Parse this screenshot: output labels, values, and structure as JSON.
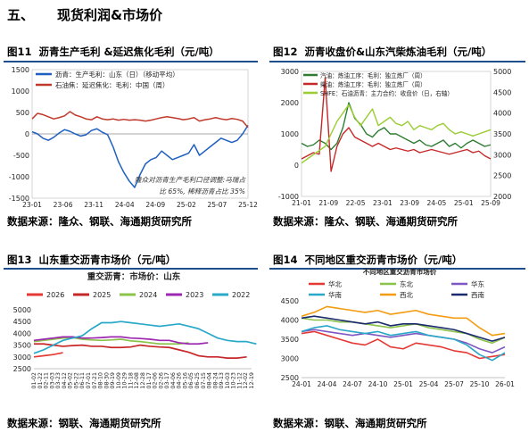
{
  "section": {
    "number": "五、",
    "title": "现货利润&市场价"
  },
  "panels": [
    {
      "fig": "图11",
      "title": "沥青生产毛利 &延迟焦化毛利（元/吨）",
      "source": "数据来源：隆众、钢联、海通期货研究所"
    },
    {
      "fig": "图12",
      "title": "沥青收盘价&山东汽柴炼油毛利（元/吨）",
      "source": "数据来源：隆众、钢联、海通期货研究所"
    },
    {
      "fig": "图13",
      "title": "山东重交沥青市场价（元/吨）",
      "source": "数据来源：钢联、海通期货研究所"
    },
    {
      "fig": "图14",
      "title": "不同地区重交沥青市场价（元/吨）",
      "source": "数据来源：钢联、海通期货研究所"
    }
  ],
  "chart_data": [
    {
      "type": "line",
      "title": "",
      "colors": [
        "#1f5fbf",
        "#c0392b"
      ],
      "x_tick_labels": [
        "23-01",
        "23-06",
        "23-11",
        "24-04",
        "24-09",
        "25-02",
        "25-07",
        "25-12"
      ],
      "ylim": [
        -1500,
        1500
      ],
      "y_ticks": [
        -1500,
        -1000,
        -500,
        0,
        500,
        1000,
        1500
      ],
      "annotation": "隆众对沥青生产毛利口径调整:马瑞占比 65%, 稀释沥青占比 35%",
      "annotation_lines": [
        "隆众对沥青生产毛利口径调整:马瑞占",
        "比 65%, 稀释沥青占比 35%"
      ],
      "legend_position": "top-left",
      "series": [
        {
          "name": "沥青：生产毛利：山东（日）（移动平均）",
          "color": "#1f5fbf",
          "values": [
            50,
            0,
            -100,
            -150,
            -80,
            20,
            100,
            60,
            0,
            -50,
            -20,
            80,
            120,
            40,
            -20,
            -300,
            -650,
            -900,
            -1100,
            -1250,
            -950,
            -700,
            -600,
            -550,
            -400,
            -500,
            -600,
            -550,
            -500,
            -450,
            -250,
            -500,
            -400,
            -300,
            -200,
            -100,
            -150,
            -200,
            -150,
            0,
            200
          ]
        },
        {
          "name": "石油焦：延迟焦化：毛利：中国（周）",
          "color": "#c0392b",
          "values": [
            350,
            480,
            450,
            400,
            350,
            380,
            420,
            520,
            440,
            400,
            350,
            330,
            400,
            350,
            330,
            350,
            320,
            340,
            320,
            330,
            320,
            300,
            320,
            350,
            380,
            400,
            380,
            360,
            330,
            350,
            380,
            300,
            330,
            350,
            380,
            350,
            330,
            360,
            340,
            300,
            150
          ]
        }
      ]
    },
    {
      "type": "line",
      "title": "",
      "x_tick_labels": [
        "21-01",
        "21-09",
        "22-05",
        "23-01",
        "23-09",
        "24-05",
        "25-01",
        "25-09"
      ],
      "ylim_left": [
        -1000,
        3000
      ],
      "y_ticks_left": [
        -1000,
        0,
        1000,
        2000,
        3000
      ],
      "ylim_right": [
        2000,
        5000
      ],
      "y_ticks_right": [
        2000,
        2500,
        3000,
        3500,
        4000,
        4500,
        5000
      ],
      "legend_position": "top-left",
      "series": [
        {
          "name": "汽油：炼油工序：毛利：独立炼厂（周）",
          "color": "#2e7d32",
          "axis": "left",
          "values": [
            700,
            600,
            650,
            800,
            700,
            500,
            700,
            1200,
            2000,
            1500,
            1300,
            1000,
            900,
            1100,
            1200,
            1000,
            1000,
            900,
            800,
            700,
            800,
            650,
            600,
            700,
            800,
            600,
            700,
            550,
            700,
            800,
            700,
            600,
            650
          ]
        },
        {
          "name": "柴油：炼油工序：毛利：独立炼厂（周）",
          "color": "#c62828",
          "axis": "left",
          "values": [
            200,
            300,
            400,
            350,
            2800,
            -200,
            600,
            1000,
            1200,
            900,
            800,
            700,
            600,
            700,
            600,
            500,
            550,
            500,
            450,
            500,
            400,
            450,
            500,
            450,
            400,
            350,
            400,
            450,
            500,
            400,
            450,
            300,
            200
          ]
        },
        {
          "name": "SHFE：石油沥青：主力合约：收盘价（日，右轴）",
          "color": "#9acd32",
          "axis": "right",
          "values": [
            2800,
            2900,
            3000,
            3100,
            3200,
            3500,
            3800,
            4000,
            4200,
            3900,
            3700,
            3900,
            4100,
            3700,
            3800,
            3900,
            3750,
            3700,
            3800,
            3600,
            3700,
            3650,
            3600,
            3700,
            3750,
            3600,
            3500,
            3550,
            3500,
            3450,
            3500,
            3550,
            3600
          ]
        }
      ]
    },
    {
      "type": "line",
      "title": "重交沥青：市场价：山东",
      "x_tick_labels": [
        "01-02",
        "01-22",
        "02-11",
        "03-03",
        "03-23",
        "04-12",
        "05-02",
        "05-22",
        "06-11",
        "07-01",
        "07-21",
        "08-10",
        "08-30",
        "09-19",
        "10-09",
        "10-29",
        "11-18",
        "12-08",
        "12-28",
        "01-17",
        "02-06",
        "02-26",
        "03-17",
        "04-06",
        "04-26",
        "05-16",
        "06-05",
        "06-25",
        "07-15",
        "08-04",
        "08-24",
        "09-13",
        "10-03",
        "10-23",
        "11-12",
        "12-02",
        "12-19"
      ],
      "ylim": [
        2500,
        5000
      ],
      "y_ticks": [
        2500,
        3000,
        3500,
        4000,
        4500,
        5000
      ],
      "legend_position": "top",
      "series": [
        {
          "name": "2026",
          "color": "#e53935",
          "values": [
            3000,
            3050,
            3100,
            3180
          ]
        },
        {
          "name": "2025",
          "color": "#c62828",
          "values": [
            3550,
            3550,
            3500,
            3450,
            3480,
            3500,
            3450,
            3450,
            3400,
            3400,
            3420,
            3500,
            3450,
            3420,
            3400,
            3300,
            3200,
            3050,
            3000,
            3000,
            2950,
            2950,
            3000
          ]
        },
        {
          "name": "2024",
          "color": "#8bc34a",
          "values": [
            3650,
            3700,
            3750,
            3800,
            3820,
            3750,
            3720,
            3700,
            3720,
            3750,
            3680,
            3650,
            3600,
            3550,
            3550,
            3550,
            3600
          ]
        },
        {
          "name": "2023",
          "color": "#9c27b0",
          "values": [
            3700,
            3750,
            3800,
            3850,
            3850,
            3800,
            3800,
            3820,
            3850,
            3850,
            3800,
            3780,
            3750,
            3700,
            3700,
            3600,
            3550,
            3550,
            3600
          ]
        },
        {
          "name": "2022",
          "color": "#29a8c8",
          "values": [
            3150,
            3300,
            3500,
            3700,
            3800,
            3900,
            4200,
            4450,
            4450,
            4500,
            4450,
            4400,
            4350,
            4300,
            4350,
            4400,
            4300,
            4200,
            4000,
            3800,
            3700,
            3650,
            3650,
            3550
          ]
        }
      ]
    },
    {
      "type": "line",
      "title": "不同地区重交沥青市场价",
      "x_tick_labels": [
        "24-01",
        "24-04",
        "24-07",
        "24-10",
        "25-01",
        "25-04",
        "25-07",
        "25-10",
        "26-01"
      ],
      "ylim": [
        2500,
        4500
      ],
      "y_ticks": [
        2500,
        3000,
        3500,
        4000,
        4500
      ],
      "legend_position": "top",
      "series": [
        {
          "name": "华北",
          "color": "#e53935",
          "values": [
            3650,
            3700,
            3600,
            3500,
            3400,
            3350,
            3500,
            3300,
            3250,
            3400,
            3350,
            3300,
            3200,
            3150,
            3000,
            3050,
            3100
          ]
        },
        {
          "name": "东北",
          "color": "#8bc34a",
          "values": [
            4050,
            4000,
            4000,
            3950,
            3950,
            3900,
            3850,
            3800,
            3850,
            3900,
            3800,
            3750,
            3700,
            3650,
            3500,
            3400,
            3550
          ]
        },
        {
          "name": "华东",
          "color": "#7e57c2",
          "values": [
            3700,
            3750,
            3700,
            3650,
            3600,
            3650,
            3600,
            3550,
            3600,
            3650,
            3600,
            3550,
            3500,
            3400,
            3250,
            3150,
            3300
          ]
        },
        {
          "name": "华南",
          "color": "#29a8c8",
          "values": [
            3700,
            3800,
            3850,
            3750,
            3700,
            3650,
            3700,
            3600,
            3650,
            3700,
            3600,
            3550,
            3500,
            3350,
            3100,
            2950,
            3150
          ]
        },
        {
          "name": "西北",
          "color": "#f39c12",
          "values": [
            4100,
            4200,
            4350,
            4300,
            4250,
            4200,
            4250,
            4150,
            4200,
            4250,
            4150,
            4100,
            4050,
            4050,
            3800,
            3600,
            3650
          ]
        },
        {
          "name": "西南",
          "color": "#1a2a6c",
          "values": [
            4050,
            4100,
            4050,
            4000,
            3950,
            3900,
            3950,
            3850,
            3900,
            3900,
            3850,
            3800,
            3750,
            3650,
            3550,
            3450,
            3550
          ]
        }
      ]
    }
  ]
}
